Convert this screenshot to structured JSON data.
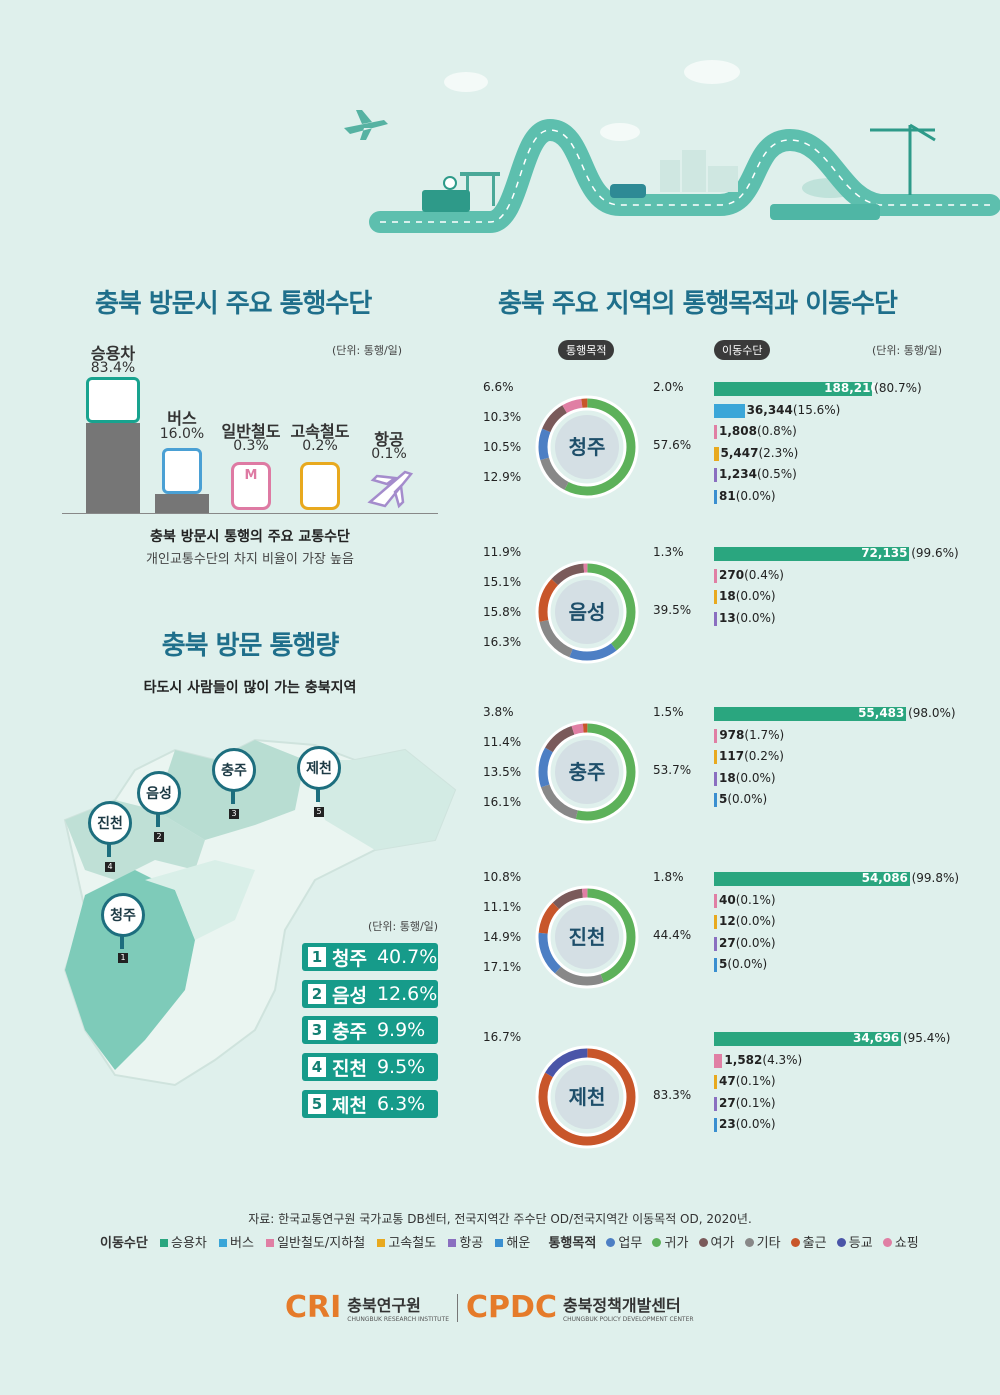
{
  "left_top": {
    "title": "충북 방문시 주요 통행수단",
    "unit": "(단위: 통행/일)",
    "modes": [
      {
        "name": "승용차",
        "pct": "83.4%",
        "value": 83.4,
        "color": "#7b7b7b"
      },
      {
        "name": "버스",
        "pct": "16.0%",
        "value": 16.0,
        "color": "#55a7d6"
      },
      {
        "name": "일반철도",
        "pct": "0.3%",
        "value": 0.3,
        "color": "#e07fa4"
      },
      {
        "name": "고속철도",
        "pct": "0.2%",
        "value": 0.2,
        "color": "#e8a91e"
      },
      {
        "name": "항공",
        "pct": "0.1%",
        "value": 0.1,
        "color": "#a48ccc"
      }
    ],
    "caption_bold": "충북 방문시 통행의 주요 교통수단",
    "caption": "개인교통수단의 차지 비율이 가장 높음"
  },
  "left_bottom": {
    "title": "충북 방문 통행량",
    "subtitle": "타도시 사람들이 많이 가는 충북지역",
    "unit": "(단위: 통행/일)",
    "pins": [
      {
        "name": "청주",
        "num": "1"
      },
      {
        "name": "음성",
        "num": "2"
      },
      {
        "name": "충주",
        "num": "3"
      },
      {
        "name": "진천",
        "num": "4"
      },
      {
        "name": "제천",
        "num": "5"
      }
    ],
    "ranking": [
      {
        "num": "1",
        "name": "청주",
        "pct": "40.7%"
      },
      {
        "num": "2",
        "name": "음성",
        "pct": "12.6%"
      },
      {
        "num": "3",
        "name": "충주",
        "pct": "9.9%"
      },
      {
        "num": "4",
        "name": "진천",
        "pct": "9.5%"
      },
      {
        "num": "5",
        "name": "제천",
        "pct": "6.3%"
      }
    ]
  },
  "right": {
    "title": "충북 주요 지역의 통행목적과 이동수단",
    "purpose_pill": "통행목적",
    "mode_pill": "이동수단",
    "unit": "(단위: 통행/일)",
    "regions": [
      {
        "name": "청주",
        "segments": [
          {
            "label": "57.6%",
            "value": 57.6,
            "color": "#5db15a"
          },
          {
            "label": "12.9%",
            "value": 12.9,
            "color": "#888888"
          },
          {
            "label": "10.5%",
            "value": 10.5,
            "color": "#4d7fc4"
          },
          {
            "label": "10.3%",
            "value": 10.3,
            "color": "#7a5a5a"
          },
          {
            "label": "6.6%",
            "value": 6.6,
            "color": "#e07fa4"
          },
          {
            "label": "2.0%",
            "value": 2.0,
            "color": "#c8562a"
          }
        ],
        "bars": [
          {
            "label": "188,210",
            "pct": "(80.7%)",
            "value": 80.7,
            "color": "#2aa67f"
          },
          {
            "label": "36,344",
            "pct": "(15.6%)",
            "value": 15.6,
            "color": "#3aa6d8"
          },
          {
            "label": "1,808",
            "pct": "(0.8%)",
            "value": 0.8,
            "color": "#e07fa4"
          },
          {
            "label": "5,447",
            "pct": "(2.3%)",
            "value": 2.3,
            "color": "#e8a91e"
          },
          {
            "label": "1,234",
            "pct": "(0.5%)",
            "value": 0.5,
            "color": "#8a6fc0"
          },
          {
            "label": "81",
            "pct": "(0.0%)",
            "value": 0.0,
            "color": "#3a8fd0"
          }
        ]
      },
      {
        "name": "음성",
        "segments": [
          {
            "label": "39.5%",
            "value": 39.5,
            "color": "#5db15a"
          },
          {
            "label": "16.3%",
            "value": 16.3,
            "color": "#4d7fc4"
          },
          {
            "label": "15.8%",
            "value": 15.8,
            "color": "#888888"
          },
          {
            "label": "15.1%",
            "value": 15.1,
            "color": "#c8562a"
          },
          {
            "label": "11.9%",
            "value": 11.9,
            "color": "#7a5a5a"
          },
          {
            "label": "1.3%",
            "value": 1.3,
            "color": "#e07fa4"
          }
        ],
        "bars": [
          {
            "label": "72,135",
            "pct": "(99.6%)",
            "value": 99.6,
            "color": "#2aa67f"
          },
          {
            "label": "270",
            "pct": "(0.4%)",
            "value": 0.4,
            "color": "#e07fa4"
          },
          {
            "label": "18",
            "pct": "(0.0%)",
            "value": 0.0,
            "color": "#e8a91e"
          },
          {
            "label": "13",
            "pct": "(0.0%)",
            "value": 0.0,
            "color": "#8a6fc0"
          }
        ]
      },
      {
        "name": "충주",
        "segments": [
          {
            "label": "53.7%",
            "value": 53.7,
            "color": "#5db15a"
          },
          {
            "label": "16.1%",
            "value": 16.1,
            "color": "#888888"
          },
          {
            "label": "13.5%",
            "value": 13.5,
            "color": "#4d7fc4"
          },
          {
            "label": "11.4%",
            "value": 11.4,
            "color": "#7a5a5a"
          },
          {
            "label": "3.8%",
            "value": 3.8,
            "color": "#e07fa4"
          },
          {
            "label": "1.5%",
            "value": 1.5,
            "color": "#c8562a"
          }
        ],
        "bars": [
          {
            "label": "55,483",
            "pct": "(98.0%)",
            "value": 98.0,
            "color": "#2aa67f"
          },
          {
            "label": "978",
            "pct": "(1.7%)",
            "value": 1.7,
            "color": "#e07fa4"
          },
          {
            "label": "117",
            "pct": "(0.2%)",
            "value": 0.2,
            "color": "#e8a91e"
          },
          {
            "label": "18",
            "pct": "(0.0%)",
            "value": 0.0,
            "color": "#8a6fc0"
          },
          {
            "label": "5",
            "pct": "(0.0%)",
            "value": 0.0,
            "color": "#3a8fd0"
          }
        ]
      },
      {
        "name": "진천",
        "segments": [
          {
            "label": "44.4%",
            "value": 44.4,
            "color": "#5db15a"
          },
          {
            "label": "17.1%",
            "value": 17.1,
            "color": "#888888"
          },
          {
            "label": "14.9%",
            "value": 14.9,
            "color": "#4d7fc4"
          },
          {
            "label": "11.1%",
            "value": 11.1,
            "color": "#c8562a"
          },
          {
            "label": "10.8%",
            "value": 10.8,
            "color": "#7a5a5a"
          },
          {
            "label": "1.8%",
            "value": 1.8,
            "color": "#e07fa4"
          }
        ],
        "bars": [
          {
            "label": "54,086",
            "pct": "(99.8%)",
            "value": 99.8,
            "color": "#2aa67f"
          },
          {
            "label": "40",
            "pct": "(0.1%)",
            "value": 0.1,
            "color": "#e07fa4"
          },
          {
            "label": "12",
            "pct": "(0.0%)",
            "value": 0.0,
            "color": "#e8a91e"
          },
          {
            "label": "27",
            "pct": "(0.0%)",
            "value": 0.0,
            "color": "#8a6fc0"
          },
          {
            "label": "5",
            "pct": "(0.0%)",
            "value": 0.0,
            "color": "#3a8fd0"
          }
        ]
      },
      {
        "name": "제천",
        "segments": [
          {
            "label": "83.3%",
            "value": 83.3,
            "color": "#c8562a"
          },
          {
            "label": "16.7%",
            "value": 16.7,
            "color": "#4a55a8"
          }
        ],
        "bars": [
          {
            "label": "34,696",
            "pct": "(95.4%)",
            "value": 95.4,
            "color": "#2aa67f"
          },
          {
            "label": "1,582",
            "pct": "(4.3%)",
            "value": 4.3,
            "color": "#e07fa4"
          },
          {
            "label": "47",
            "pct": "(0.1%)",
            "value": 0.1,
            "color": "#e8a91e"
          },
          {
            "label": "27",
            "pct": "(0.1%)",
            "value": 0.1,
            "color": "#8a6fc0"
          },
          {
            "label": "23",
            "pct": "(0.0%)",
            "value": 0.0,
            "color": "#3a8fd0"
          }
        ]
      }
    ]
  },
  "footer": {
    "source": "자료: 한국교통연구원 국가교통 DB센터, 전국지역간 주수단 OD/전국지역간 이동목적 OD, 2020년.",
    "mode_legend_title": "이동수단",
    "mode_legend": [
      {
        "label": "승용차",
        "color": "#2aa67f"
      },
      {
        "label": "버스",
        "color": "#3aa6d8"
      },
      {
        "label": "일반철도/지하철",
        "color": "#e07fa4"
      },
      {
        "label": "고속철도",
        "color": "#e8a91e"
      },
      {
        "label": "항공",
        "color": "#8a6fc0"
      },
      {
        "label": "해운",
        "color": "#3a8fd0"
      }
    ],
    "purpose_legend_title": "통행목적",
    "purpose_legend": [
      {
        "label": "업무",
        "color": "#4d7fc4"
      },
      {
        "label": "귀가",
        "color": "#5db15a"
      },
      {
        "label": "여가",
        "color": "#7a5a5a"
      },
      {
        "label": "기타",
        "color": "#888888"
      },
      {
        "label": "출근",
        "color": "#c8562a"
      },
      {
        "label": "등교",
        "color": "#4a55a8"
      },
      {
        "label": "쇼핑",
        "color": "#e07fa4"
      }
    ],
    "logo1_main": "CRI",
    "logo1_kr": "충북연구원",
    "logo1_en": "CHUNGBUK RESEARCH INSTITUTE",
    "logo2_main": "CPDC",
    "logo2_kr": "충북정책개발센터",
    "logo2_en": "CHUNGBUK POLICY DEVELOPMENT CENTER"
  }
}
